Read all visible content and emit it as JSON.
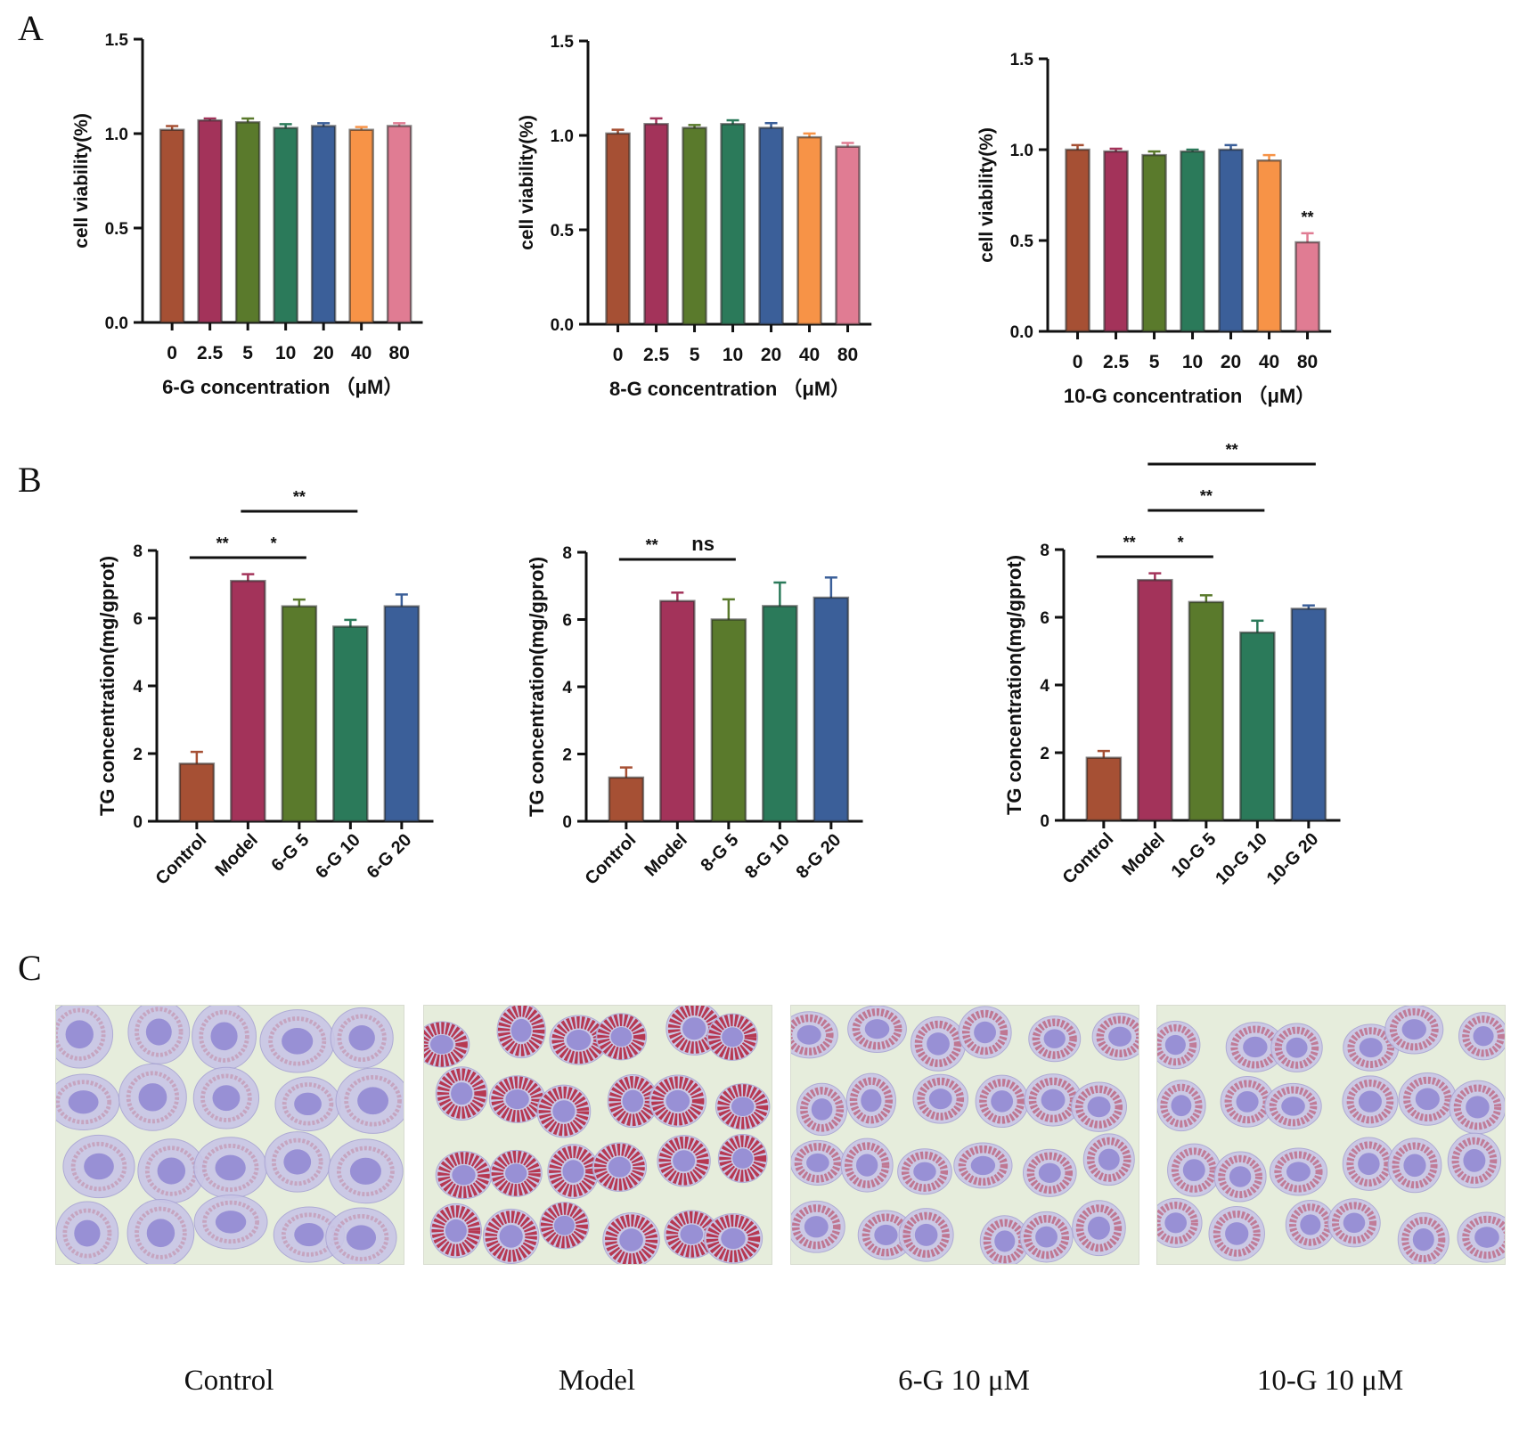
{
  "panels": {
    "a": "A",
    "b": "B",
    "c": "C"
  },
  "colors": [
    "#a65034",
    "#a3335a",
    "#5a7a2c",
    "#2b7a5a",
    "#3b5f99",
    "#f79347",
    "#e07c93"
  ],
  "chart_data": [
    {
      "type": "bar",
      "panel": "A",
      "categories": [
        "0",
        "2.5",
        "5",
        "10",
        "20",
        "40",
        "80"
      ],
      "values": [
        1.02,
        1.07,
        1.06,
        1.03,
        1.04,
        1.02,
        1.04
      ],
      "errors": [
        0.02,
        0.01,
        0.02,
        0.02,
        0.015,
        0.015,
        0.015
      ],
      "sig": [
        "",
        "",
        "",
        "",
        "",
        "",
        ""
      ],
      "xlabel": "6-G concentration （μM）",
      "ylabel": "cell viability(%)",
      "ylim": [
        0,
        1.5
      ],
      "yticks": [
        "0.0",
        "0.5",
        "1.0",
        "1.5"
      ],
      "brackets": []
    },
    {
      "type": "bar",
      "panel": "A",
      "categories": [
        "0",
        "2.5",
        "5",
        "10",
        "20",
        "40",
        "80"
      ],
      "values": [
        1.01,
        1.06,
        1.04,
        1.06,
        1.04,
        0.99,
        0.94
      ],
      "errors": [
        0.02,
        0.03,
        0.015,
        0.02,
        0.025,
        0.02,
        0.02
      ],
      "sig": [
        "",
        "",
        "",
        "",
        "",
        "",
        ""
      ],
      "xlabel": "8-G concentration （μM）",
      "ylabel": "cell viability(%)",
      "ylim": [
        0,
        1.5
      ],
      "yticks": [
        "0.0",
        "0.5",
        "1.0",
        "1.5"
      ],
      "brackets": []
    },
    {
      "type": "bar",
      "panel": "A",
      "categories": [
        "0",
        "2.5",
        "5",
        "10",
        "20",
        "40",
        "80"
      ],
      "values": [
        1.0,
        0.99,
        0.97,
        0.99,
        1.0,
        0.94,
        0.49
      ],
      "errors": [
        0.025,
        0.015,
        0.02,
        0.01,
        0.025,
        0.03,
        0.05
      ],
      "sig": [
        "",
        "",
        "",
        "",
        "",
        "",
        "**"
      ],
      "xlabel": "10-G concentration （μM）",
      "ylabel": "cell viability(%)",
      "ylim": [
        0,
        1.5
      ],
      "yticks": [
        "0.0",
        "0.5",
        "1.0",
        "1.5"
      ],
      "brackets": []
    },
    {
      "type": "bar",
      "panel": "B",
      "categories": [
        "Control",
        "Model",
        "6-G 5",
        "6-G 10",
        "6-G 20"
      ],
      "values": [
        1.7,
        7.1,
        6.35,
        5.75,
        6.35
      ],
      "errors": [
        0.35,
        0.2,
        0.2,
        0.2,
        0.35
      ],
      "sig": [
        "",
        "",
        "",
        "",
        ""
      ],
      "xlabel": "",
      "ylabel": "TG concentration(mg/gprot)",
      "ylim": [
        0,
        8
      ],
      "yticks": [
        "0",
        "2",
        "4",
        "6",
        "8"
      ],
      "brackets": [
        {
          "from": 0,
          "to": 1,
          "label": "**",
          "level": 0
        },
        {
          "from": 1,
          "to": 2,
          "label": "*",
          "level": 0
        },
        {
          "from": 1,
          "to": 3,
          "label": "**",
          "level": 1
        }
      ]
    },
    {
      "type": "bar",
      "panel": "B",
      "categories": [
        "Control",
        "Model",
        "8-G 5",
        "8-G 10",
        "8-G 20"
      ],
      "values": [
        1.3,
        6.55,
        6.0,
        6.4,
        6.65
      ],
      "errors": [
        0.3,
        0.25,
        0.6,
        0.7,
        0.6
      ],
      "sig": [
        "",
        "",
        "",
        "",
        ""
      ],
      "xlabel": "",
      "ylabel": "TG concentration(mg/gprot)",
      "ylim": [
        0,
        8
      ],
      "yticks": [
        "0",
        "2",
        "4",
        "6",
        "8"
      ],
      "brackets": [
        {
          "from": 0,
          "to": 1,
          "label": "**",
          "level": 0
        },
        {
          "from": 1,
          "to": 2,
          "label": "ns",
          "level": 0
        }
      ]
    },
    {
      "type": "bar",
      "panel": "B",
      "categories": [
        "Control",
        "Model",
        "10-G 5",
        "10-G 10",
        "10-G 20"
      ],
      "values": [
        1.85,
        7.1,
        6.45,
        5.55,
        6.25
      ],
      "errors": [
        0.2,
        0.2,
        0.2,
        0.35,
        0.1
      ],
      "sig": [
        "",
        "",
        "",
        "",
        ""
      ],
      "xlabel": "",
      "ylabel": "TG concentration(mg/gprot)",
      "ylim": [
        0,
        8
      ],
      "yticks": [
        "0",
        "2",
        "4",
        "6",
        "8"
      ],
      "brackets": [
        {
          "from": 0,
          "to": 1,
          "label": "**",
          "level": 0
        },
        {
          "from": 1,
          "to": 2,
          "label": "*",
          "level": 0
        },
        {
          "from": 1,
          "to": 3,
          "label": "**",
          "level": 1
        },
        {
          "from": 1,
          "to": 4,
          "label": "**",
          "level": 2
        }
      ]
    }
  ],
  "micrographs": [
    {
      "caption": "Control",
      "stain": 0.08
    },
    {
      "caption": "Model",
      "stain": 0.95
    },
    {
      "caption": "6-G 10 μM",
      "stain": 0.45
    },
    {
      "caption": "10-G 10 μM",
      "stain": 0.4
    }
  ]
}
